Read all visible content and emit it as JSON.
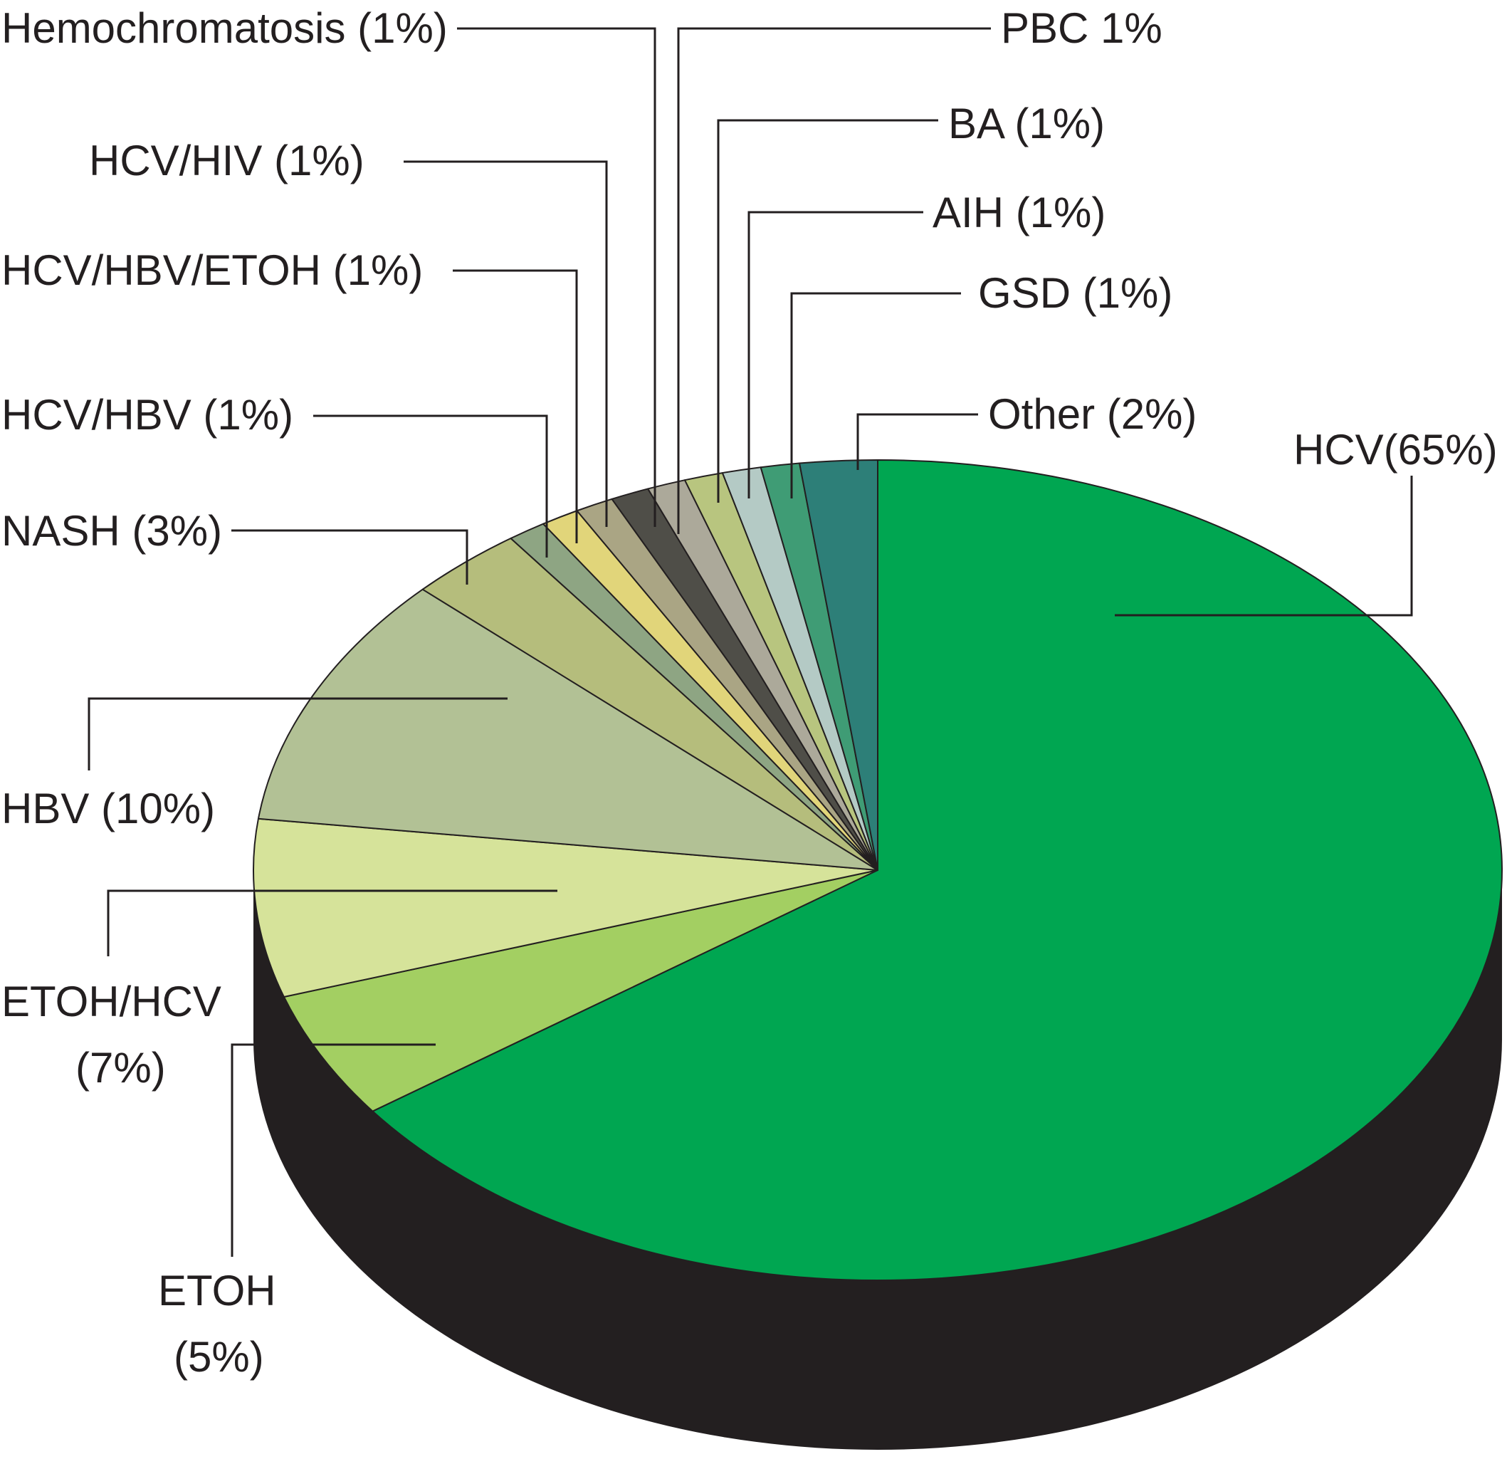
{
  "chart_data": {
    "type": "pie",
    "style": "3d",
    "title": "",
    "start": "12 o'clock",
    "direction": "clockwise",
    "slices": [
      {
        "label": "HCV(65%)",
        "value": 65,
        "color": "#00a651"
      },
      {
        "label": "ETOH (5%)",
        "value": 5,
        "color": "#a3cf62"
      },
      {
        "label": "ETOH/HCV (7%)",
        "value": 7,
        "color": "#d6e39a"
      },
      {
        "label": "HBV (10%)",
        "value": 10,
        "color": "#b2c195"
      },
      {
        "label": "NASH (3%)",
        "value": 3,
        "color": "#b5bd7c"
      },
      {
        "label": "HCV/HBV (1%)",
        "value": 1,
        "color": "#8ea583"
      },
      {
        "label": "HCV/HBV/ETOH (1%)",
        "value": 1,
        "color": "#e1d57a"
      },
      {
        "label": "HCV/HIV (1%)",
        "value": 1,
        "color": "#aaa584"
      },
      {
        "label": "Hemochromatosis (1%)",
        "value": 1,
        "color": "#4f4e48"
      },
      {
        "label": "PBC 1%",
        "value": 1,
        "color": "#aca99a"
      },
      {
        "label": "BA (1%)",
        "value": 1,
        "color": "#b8c57f"
      },
      {
        "label": "AIH (1%)",
        "value": 1,
        "color": "#b4cac5"
      },
      {
        "label": "GSD (1%)",
        "value": 1,
        "color": "#3f9c75"
      },
      {
        "label": "Other (2%)",
        "value": 2,
        "color": "#2d7f78"
      }
    ],
    "side_color": "#231f20",
    "edge_color": "#231f20"
  },
  "labels": {
    "hcv": "HCV(65%)",
    "etoh_line1": "ETOH",
    "etoh_line2": "(5%)",
    "etoh_hcv_line1": "ETOH/HCV",
    "etoh_hcv_line2": "(7%)",
    "hbv": "HBV (10%)",
    "nash": "NASH (3%)",
    "hcv_hbv": "HCV/HBV (1%)",
    "hcv_hbv_etoh": "HCV/HBV/ETOH (1%)",
    "hcv_hiv": "HCV/HIV (1%)",
    "hemochromatosis": "Hemochromatosis (1%)",
    "pbc": "PBC 1%",
    "ba": "BA (1%)",
    "aih": "AIH (1%)",
    "gsd": "GSD (1%)",
    "other": "Other (2%)"
  }
}
